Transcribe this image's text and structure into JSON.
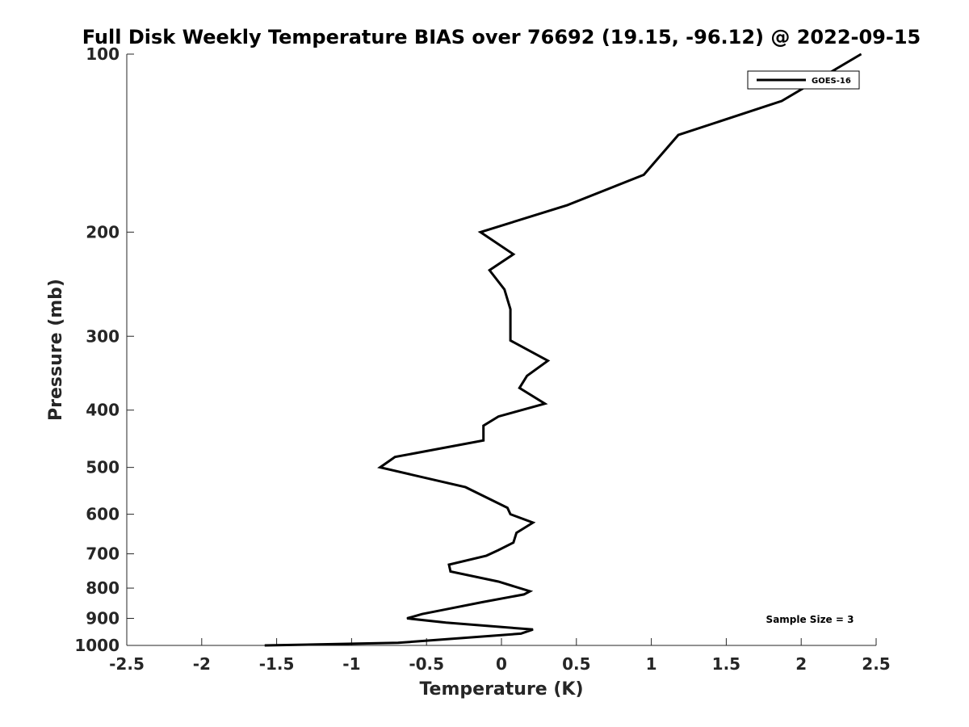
{
  "chart_data": {
    "type": "line",
    "title": "Full Disk Weekly Temperature BIAS over 76692 (19.15, -96.12) @ 2022-09-15",
    "xlabel": "Temperature (K)",
    "ylabel": "Pressure (mb)",
    "xlim": [
      -2.5,
      2.5
    ],
    "ylim": [
      100,
      1000
    ],
    "y_scale": "log",
    "y_reversed": true,
    "xticks": [
      "-2.5",
      "-2",
      "-1.5",
      "-1",
      "-0.5",
      "0",
      "0.5",
      "1",
      "1.5",
      "2",
      "2.5"
    ],
    "yticks": [
      "100",
      "200",
      "300",
      "400",
      "500",
      "600",
      "700",
      "800",
      "900",
      "1000"
    ],
    "legend_position": "top-right",
    "series": [
      {
        "name": "GOES-16",
        "color": "#000000",
        "x": [
          2.4,
          1.87,
          1.18,
          0.95,
          0.44,
          -0.14,
          0.08,
          -0.08,
          0.02,
          0.06,
          0.06,
          0.31,
          0.17,
          0.12,
          0.29,
          -0.02,
          -0.12,
          -0.12,
          -0.71,
          -0.81,
          -0.24,
          0.04,
          0.06,
          0.21,
          0.1,
          0.08,
          -0.02,
          -0.1,
          -0.35,
          -0.34,
          -0.02,
          0.19,
          0.15,
          -0.13,
          -0.38,
          -0.53,
          -0.63,
          -0.37,
          0.21,
          0.13,
          -0.69,
          -1.58
        ],
        "y": [
          100,
          120,
          137,
          160,
          180,
          200,
          218,
          232,
          250,
          270,
          305,
          330,
          350,
          367,
          390,
          410,
          425,
          450,
          480,
          500,
          540,
          585,
          600,
          620,
          645,
          670,
          690,
          705,
          730,
          750,
          780,
          810,
          820,
          845,
          870,
          885,
          900,
          915,
          940,
          955,
          990,
          1000
        ]
      }
    ],
    "annotations": [
      "Sample Size = 3"
    ]
  }
}
